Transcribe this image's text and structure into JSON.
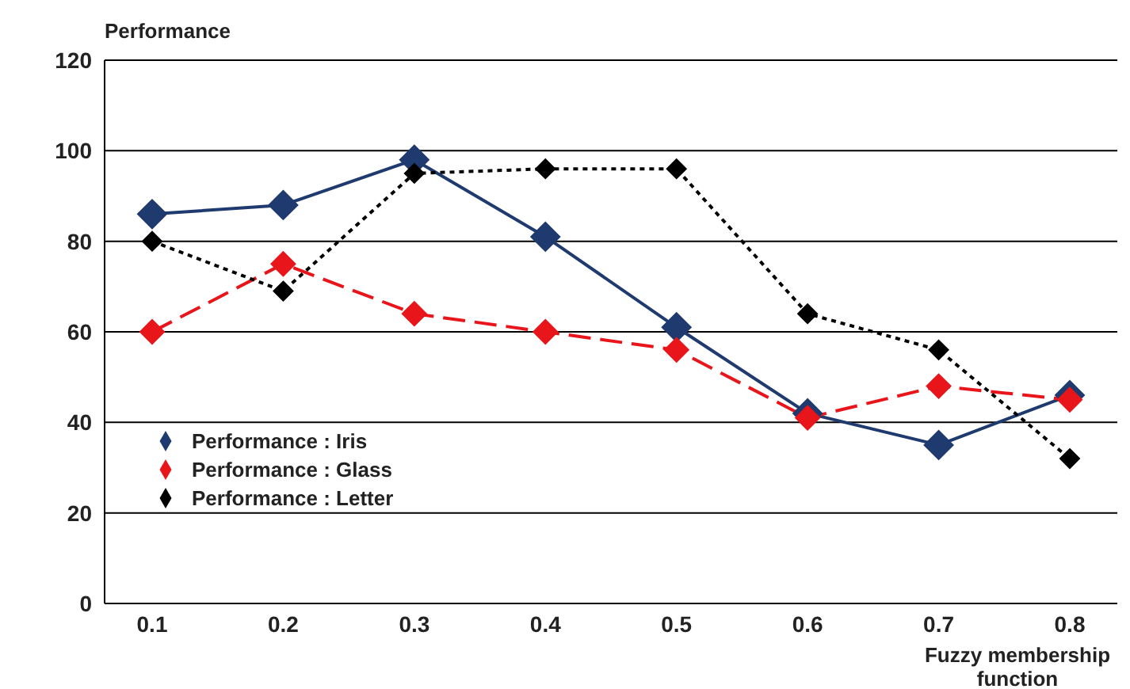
{
  "chart_data": {
    "type": "line",
    "ylabel": "Performance",
    "xlabel": "Fuzzy membership function",
    "categories": [
      "0.1",
      "0.2",
      "0.3",
      "0.4",
      "0.5",
      "0.6",
      "0.7",
      "0.8"
    ],
    "series": [
      {
        "name": "Performance : Iris",
        "color": "#1f3a6e",
        "line_style": "solid",
        "values": [
          86,
          88,
          98,
          81,
          61,
          42,
          35,
          46
        ]
      },
      {
        "name": "Performance : Glass",
        "color": "#e8151b",
        "line_style": "dashed",
        "values": [
          60,
          75,
          64,
          60,
          56,
          41,
          48,
          45
        ]
      },
      {
        "name": "Performance : Letter",
        "color": "#000000",
        "line_style": "dotted",
        "values": [
          80,
          69,
          95,
          96,
          96,
          64,
          56,
          32
        ]
      }
    ],
    "ylim": [
      0,
      120
    ],
    "yticks": [
      0,
      20,
      40,
      60,
      80,
      100,
      120
    ],
    "grid": "y",
    "legend": "bottom left",
    "marker": "diamond"
  }
}
